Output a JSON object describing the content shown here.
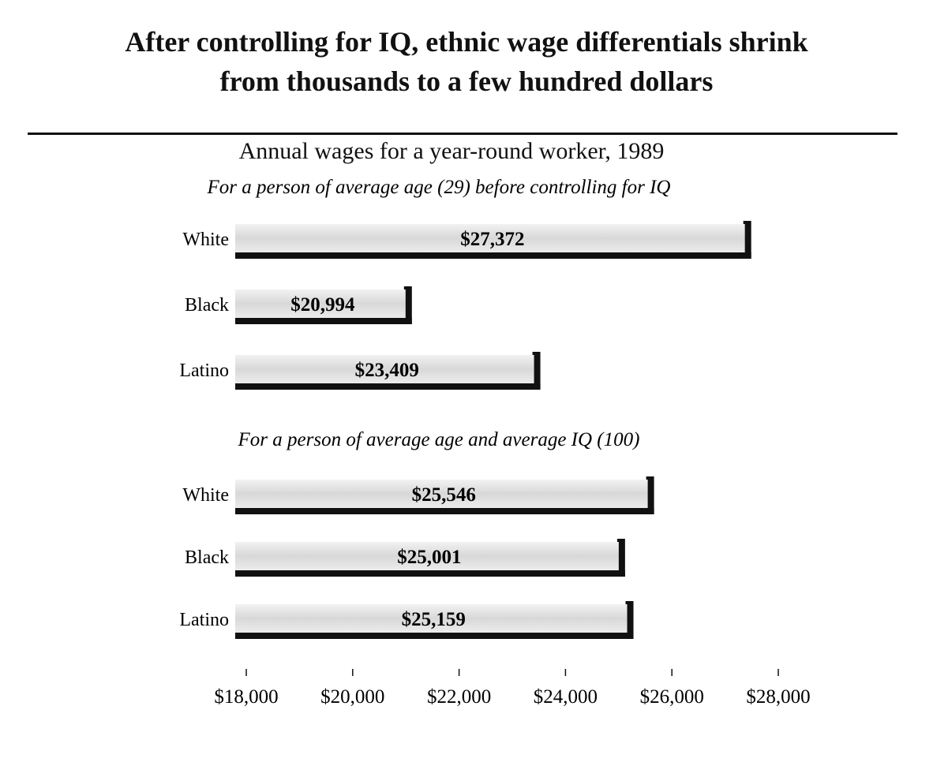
{
  "title_lines": [
    "After controlling for IQ, ethnic wage differentials shrink",
    "from thousands to a few hundred dollars"
  ],
  "subtitle": "Annual wages for a year-round worker, 1989",
  "chart_data": {
    "type": "bar",
    "orientation": "horizontal",
    "title": "After controlling for IQ, ethnic wage differentials shrink from thousands to a few hundred dollars",
    "subtitle": "Annual wages for a year-round worker, 1989",
    "xlim": [
      18000,
      28000
    ],
    "x_ticks": [
      18000,
      20000,
      22000,
      24000,
      26000,
      28000
    ],
    "x_tick_labels": [
      "$18,000",
      "$20,000",
      "$22,000",
      "$24,000",
      "$26,000",
      "$28,000"
    ],
    "grid": false,
    "groups": [
      {
        "label": "For a person of average age (29) before controlling for IQ",
        "categories": [
          "White",
          "Black",
          "Latino"
        ],
        "values": [
          27372,
          20994,
          23409
        ],
        "value_labels": [
          "$27,372",
          "$20,994",
          "$23,409"
        ]
      },
      {
        "label": "For a person of average age and average IQ (100)",
        "categories": [
          "White",
          "Black",
          "Latino"
        ],
        "values": [
          25546,
          25001,
          25159
        ],
        "value_labels": [
          "$25,546",
          "$25,001",
          "$25,159"
        ]
      }
    ]
  }
}
